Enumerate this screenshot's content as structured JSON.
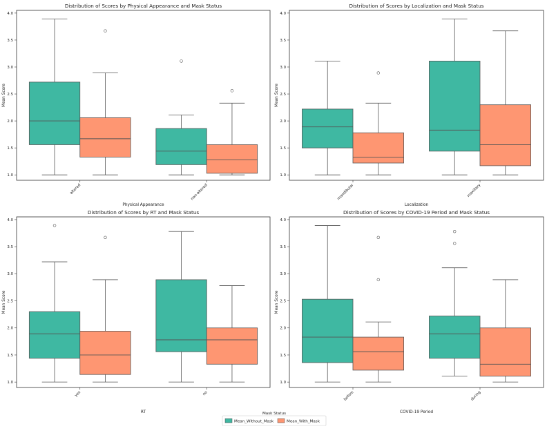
{
  "colors": {
    "Mean_Without_Mask": "#3fb8a2",
    "Mean_With_Mask": "#fe9672",
    "line": "#555555",
    "frame": "#333333"
  },
  "legend": {
    "title": "Mask Status",
    "placement": "bottom-center",
    "items": [
      "Mean_Without_Mask",
      "Mean_With_Mask"
    ]
  },
  "chart_data": [
    {
      "type": "box",
      "title": "Distribution of Scores by Physical Appearance and Mask Status",
      "xlabel": "Physical Appearance",
      "ylabel": "Mean Score",
      "ylim": [
        0.9,
        4.05
      ],
      "yticks": [
        "1.0",
        "1.5",
        "2.0",
        "2.5",
        "3.0",
        "3.5",
        "4.0"
      ],
      "categories": [
        "altered",
        "non-altered"
      ],
      "series": [
        {
          "name": "Mean_Without_Mask",
          "boxes": [
            {
              "whislo": 1.0,
              "q1": 1.56,
              "med": 2.0,
              "q3": 2.72,
              "whishi": 3.89,
              "fliers": []
            },
            {
              "whislo": 1.0,
              "q1": 1.19,
              "med": 1.44,
              "q3": 1.86,
              "whishi": 2.11,
              "fliers": [
                3.11
              ]
            }
          ]
        },
        {
          "name": "Mean_With_Mask",
          "boxes": [
            {
              "whislo": 1.0,
              "q1": 1.33,
              "med": 1.67,
              "q3": 2.06,
              "whishi": 2.89,
              "fliers": [
                3.67
              ]
            },
            {
              "whislo": 1.0,
              "q1": 1.03,
              "med": 1.28,
              "q3": 1.56,
              "whishi": 2.33,
              "fliers": [
                2.56
              ]
            }
          ]
        }
      ]
    },
    {
      "type": "box",
      "title": "Distribution of Scores by Localization and Mask Status",
      "xlabel": "Localization",
      "ylabel": "Mean Score",
      "ylim": [
        0.9,
        4.05
      ],
      "yticks": [
        "1.0",
        "1.5",
        "2.0",
        "2.5",
        "3.0",
        "3.5",
        "4.0"
      ],
      "categories": [
        "mandibular",
        "maxillary"
      ],
      "series": [
        {
          "name": "Mean_Without_Mask",
          "boxes": [
            {
              "whislo": 1.0,
              "q1": 1.5,
              "med": 1.89,
              "q3": 2.22,
              "whishi": 3.11,
              "fliers": []
            },
            {
              "whislo": 1.0,
              "q1": 1.44,
              "med": 1.83,
              "q3": 3.11,
              "whishi": 3.89,
              "fliers": []
            }
          ]
        },
        {
          "name": "Mean_With_Mask",
          "boxes": [
            {
              "whislo": 1.0,
              "q1": 1.22,
              "med": 1.33,
              "q3": 1.78,
              "whishi": 2.33,
              "fliers": [
                2.89
              ]
            },
            {
              "whislo": 1.0,
              "q1": 1.17,
              "med": 1.56,
              "q3": 2.3,
              "whishi": 3.67,
              "fliers": []
            }
          ]
        }
      ]
    },
    {
      "type": "box",
      "title": "Distribution of Scores by RT and Mask Status",
      "xlabel": "RT",
      "ylabel": "Mean Score",
      "ylim": [
        0.9,
        4.05
      ],
      "yticks": [
        "1.0",
        "1.5",
        "2.0",
        "2.5",
        "3.0",
        "3.5",
        "4.0"
      ],
      "categories": [
        "yes",
        "no"
      ],
      "series": [
        {
          "name": "Mean_Without_Mask",
          "boxes": [
            {
              "whislo": 1.0,
              "q1": 1.44,
              "med": 1.89,
              "q3": 2.3,
              "whishi": 3.22,
              "fliers": [
                3.89
              ]
            },
            {
              "whislo": 1.0,
              "q1": 1.56,
              "med": 1.78,
              "q3": 2.89,
              "whishi": 3.78,
              "fliers": []
            }
          ]
        },
        {
          "name": "Mean_With_Mask",
          "boxes": [
            {
              "whislo": 1.0,
              "q1": 1.14,
              "med": 1.5,
              "q3": 1.94,
              "whishi": 2.89,
              "fliers": [
                3.67
              ]
            },
            {
              "whislo": 1.0,
              "q1": 1.33,
              "med": 1.78,
              "q3": 2.0,
              "whishi": 2.78,
              "fliers": []
            }
          ]
        }
      ]
    },
    {
      "type": "box",
      "title": "Distribution of Scores by COVID-19 Period and Mask Status",
      "xlabel": "COVID-19 Period",
      "ylabel": "Mean Score",
      "ylim": [
        0.9,
        4.05
      ],
      "yticks": [
        "1.0",
        "1.5",
        "2.0",
        "2.5",
        "3.0",
        "3.5",
        "4.0"
      ],
      "categories": [
        "before",
        "during"
      ],
      "series": [
        {
          "name": "Mean_Without_Mask",
          "boxes": [
            {
              "whislo": 1.0,
              "q1": 1.36,
              "med": 1.83,
              "q3": 2.53,
              "whishi": 3.89,
              "fliers": []
            },
            {
              "whislo": 1.11,
              "q1": 1.44,
              "med": 1.89,
              "q3": 2.22,
              "whishi": 3.11,
              "fliers": [
                3.56,
                3.78
              ]
            }
          ]
        },
        {
          "name": "Mean_With_Mask",
          "boxes": [
            {
              "whislo": 1.0,
              "q1": 1.22,
              "med": 1.56,
              "q3": 1.83,
              "whishi": 2.11,
              "fliers": [
                2.89,
                3.67
              ]
            },
            {
              "whislo": 1.0,
              "q1": 1.11,
              "med": 1.33,
              "q3": 2.0,
              "whishi": 2.89,
              "fliers": []
            }
          ]
        }
      ]
    }
  ]
}
